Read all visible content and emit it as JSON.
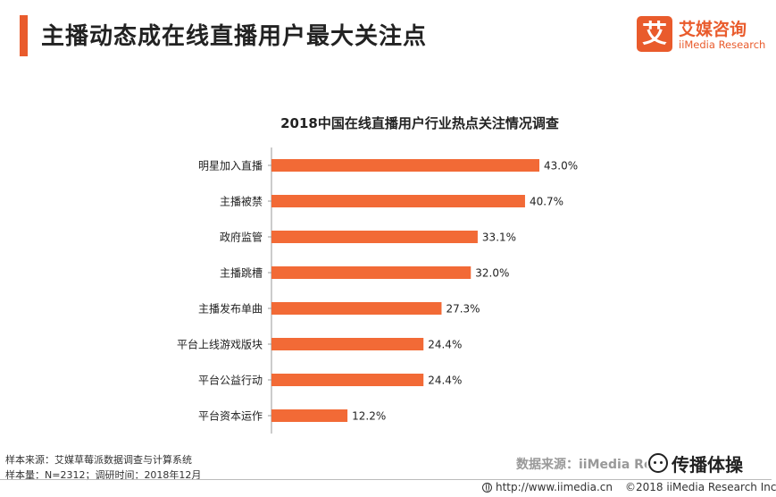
{
  "page": {
    "title": "主播动态成在线直播用户最大关注点"
  },
  "logo": {
    "mark": "艾",
    "name_cn": "艾媒咨询",
    "name_en": "iiMedia Research"
  },
  "chart_data": {
    "type": "bar",
    "orientation": "horizontal",
    "title": "2018中国在线直播用户行业热点关注情况调查",
    "categories": [
      "明星加入直播",
      "主播被禁",
      "政府监管",
      "主播跳槽",
      "主播发布单曲",
      "平台上线游戏版块",
      "平台公益行动",
      "平台资本运作"
    ],
    "values": [
      43.0,
      40.7,
      33.1,
      32.0,
      27.3,
      24.4,
      24.4,
      12.2
    ],
    "labels": [
      "43.0%",
      "40.7%",
      "33.1%",
      "32.0%",
      "27.3%",
      "24.4%",
      "24.4%",
      "12.2%"
    ],
    "unit": "%",
    "xlim": [
      0,
      50
    ],
    "grid": false,
    "bar_color": "#f26a36"
  },
  "footer": {
    "sample_source": "样本来源：艾媒草莓派数据调查与计算系统",
    "sample_size": "样本量：N=2312；调研时间：2018年12月",
    "data_source": "数据来源：iiMedia Re",
    "watermark": "传播体操",
    "website": "http://www.iimedia.cn",
    "copyright": "©2018  iiMedia Research Inc"
  },
  "colors": {
    "accent": "#e95b2c",
    "bar": "#f26a36"
  }
}
